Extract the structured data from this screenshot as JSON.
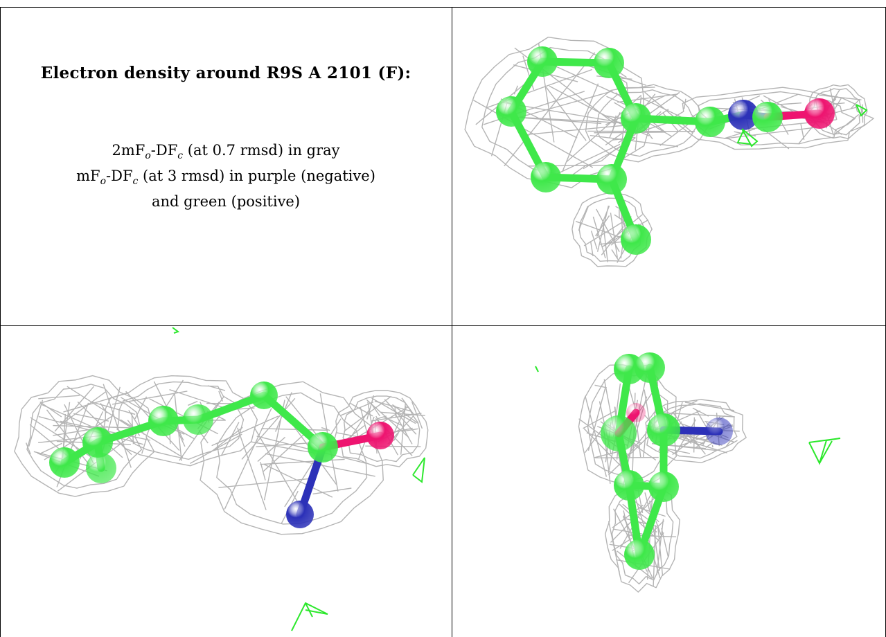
{
  "title": "Electron density around R9S A 2101 (F):",
  "legend": {
    "line1": {
      "a": "2mF",
      "sub1": "o",
      "b": "-DF",
      "sub2": "c",
      "c": " (at 0.7 rmsd) in gray"
    },
    "line2": {
      "a": "mF",
      "sub1": "o",
      "b": "-DF",
      "sub2": "c",
      "c": " (at 3 rmsd) in purple (negative)"
    },
    "line3": "and green (positive)"
  },
  "colors": {
    "mesh": "#b4b4b4",
    "carbon": "#3fe84a",
    "nitrogen": "#2c31b8",
    "oxygen": "#ee1470",
    "positive_density": "#2ce82c",
    "frame": "#000000"
  },
  "panels": [
    {
      "name": "view-top-right",
      "atoms": [
        "C",
        "C",
        "C",
        "C",
        "C",
        "C",
        "C",
        "C",
        "N",
        "C",
        "O"
      ]
    },
    {
      "name": "view-bottom-left",
      "atoms": [
        "C",
        "C",
        "C",
        "C",
        "C",
        "C",
        "C",
        "N",
        "O"
      ]
    },
    {
      "name": "view-bottom-right",
      "atoms": [
        "C",
        "C",
        "C",
        "C",
        "C",
        "C",
        "C",
        "N",
        "O"
      ]
    }
  ]
}
